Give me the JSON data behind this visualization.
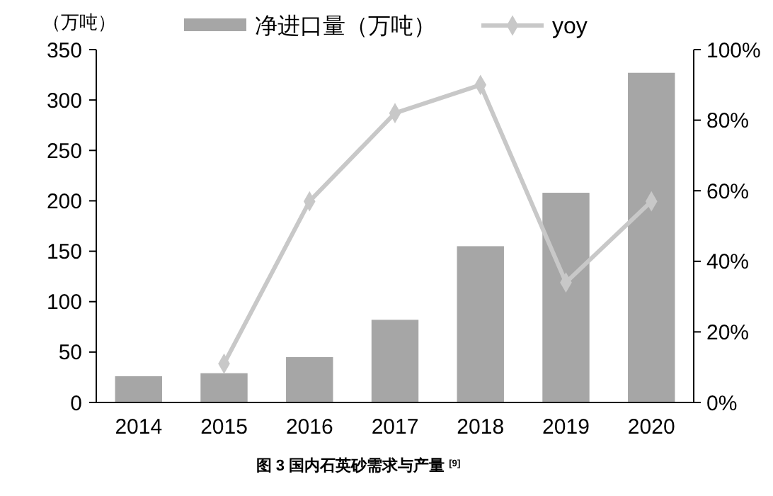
{
  "chart_data": {
    "type": "bar",
    "ylabel": "（万吨）",
    "categories": [
      "2014",
      "2015",
      "2016",
      "2017",
      "2018",
      "2019",
      "2020"
    ],
    "series": [
      {
        "name": "净进口量（万吨）",
        "color": "#a6a6a6",
        "values": [
          26,
          29,
          45,
          82,
          155,
          208,
          327
        ]
      },
      {
        "name": "yoy",
        "type": "line",
        "axis": "y2",
        "color": "#c8c8c8",
        "marker": "diamond",
        "values": [
          null,
          11,
          57,
          82,
          90,
          34,
          57
        ]
      }
    ],
    "ylim": [
      0,
      350
    ],
    "yticks": [
      0,
      50,
      100,
      150,
      200,
      250,
      300,
      350
    ],
    "y2lim": [
      0,
      100
    ],
    "y2ticks": [
      {
        "value": 0,
        "label": "0%"
      },
      {
        "value": 20,
        "label": "20%"
      },
      {
        "value": 40,
        "label": "40%"
      },
      {
        "value": 60,
        "label": "60%"
      },
      {
        "value": 80,
        "label": "80%"
      },
      {
        "value": 100,
        "label": "100%"
      }
    ],
    "legend": "top",
    "grid": false,
    "annotations": [
      "图 3 国内石英砂需求与产量 $^{[9]}$"
    ]
  }
}
